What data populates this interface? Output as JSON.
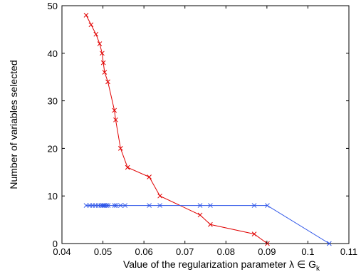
{
  "chart_data": {
    "type": "line",
    "title": "",
    "xlabel": "Value of the regularization parameter λ ∈ G",
    "xlabel_subscript": "k",
    "ylabel": "Number of variables selected",
    "xlim": [
      0.04,
      0.11
    ],
    "ylim": [
      0,
      50
    ],
    "xticks": [
      "0.04",
      "0.05",
      "0.06",
      "0.07",
      "0.08",
      "0.09",
      "0.1",
      "0.11"
    ],
    "yticks": [
      "0",
      "10",
      "20",
      "30",
      "40",
      "50"
    ],
    "xtick_values": [
      0.04,
      0.05,
      0.06,
      0.07,
      0.08,
      0.09,
      0.1,
      0.11
    ],
    "ytick_values": [
      0,
      10,
      20,
      30,
      40,
      50
    ],
    "grid": false,
    "legend": "none",
    "marker": "x",
    "series": [
      {
        "color": "#e00000",
        "points": [
          [
            0.0459,
            48
          ],
          [
            0.0471,
            46
          ],
          [
            0.0483,
            44
          ],
          [
            0.0492,
            42
          ],
          [
            0.0498,
            40
          ],
          [
            0.0501,
            38
          ],
          [
            0.0504,
            36
          ],
          [
            0.0512,
            34
          ],
          [
            0.0528,
            28
          ],
          [
            0.0531,
            26
          ],
          [
            0.0543,
            20
          ],
          [
            0.056,
            16
          ],
          [
            0.0613,
            14
          ],
          [
            0.0639,
            10
          ],
          [
            0.0737,
            6
          ],
          [
            0.0762,
            4
          ],
          [
            0.0869,
            2
          ],
          [
            0.0901,
            0
          ]
        ]
      },
      {
        "color": "#2a52e8",
        "points": [
          [
            0.0459,
            8
          ],
          [
            0.0468,
            8
          ],
          [
            0.0475,
            8
          ],
          [
            0.0482,
            8
          ],
          [
            0.0489,
            8
          ],
          [
            0.0495,
            8
          ],
          [
            0.0499,
            8
          ],
          [
            0.0502,
            8
          ],
          [
            0.0505,
            8
          ],
          [
            0.0509,
            8
          ],
          [
            0.0513,
            8
          ],
          [
            0.0528,
            8
          ],
          [
            0.0532,
            8
          ],
          [
            0.0543,
            8
          ],
          [
            0.0554,
            8
          ],
          [
            0.0613,
            8
          ],
          [
            0.0639,
            8
          ],
          [
            0.0737,
            8
          ],
          [
            0.0762,
            8
          ],
          [
            0.0869,
            8
          ],
          [
            0.0901,
            8
          ],
          [
            0.1052,
            0
          ]
        ]
      }
    ]
  }
}
